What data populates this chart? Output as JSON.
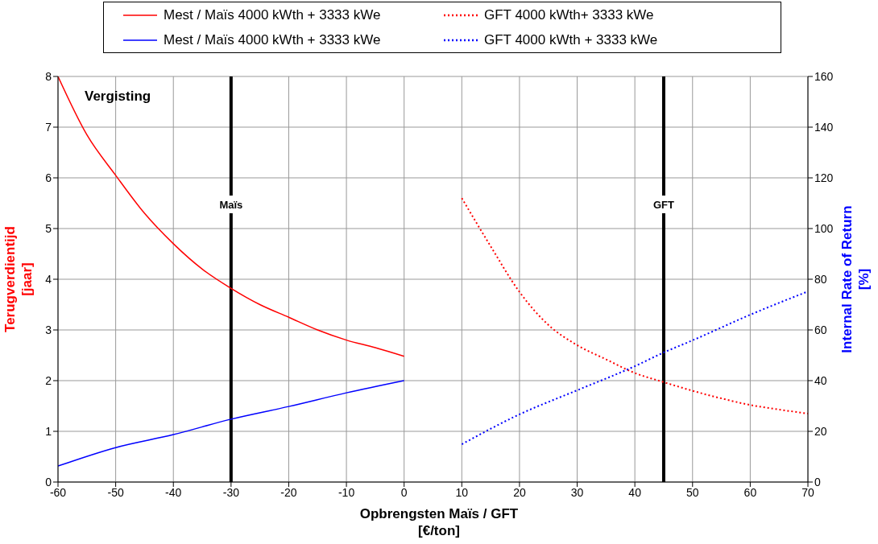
{
  "chart_data": {
    "type": "line",
    "title": "Vergisting",
    "xlabel": "Opbrengsten Maïs / GFT\n[€/ton]",
    "ylabel": "Terugverdientijd\n[jaar]",
    "y2label": "Internal Rate of Return\n[%]",
    "xlim": [
      -60,
      70
    ],
    "xticks": [
      -60,
      -50,
      -40,
      -30,
      -20,
      -10,
      0,
      10,
      20,
      30,
      40,
      50,
      60,
      70
    ],
    "ylim": [
      0,
      8
    ],
    "yticks": [
      0,
      1,
      2,
      3,
      4,
      5,
      6,
      7,
      8
    ],
    "y2lim": [
      0,
      160
    ],
    "y2ticks": [
      0,
      20,
      40,
      60,
      80,
      100,
      120,
      140,
      160
    ],
    "grid": true,
    "legend": "top",
    "marker": "none",
    "series": [
      {
        "name": "Mest / Maïs 4000 kWth + 3333 kWe",
        "color": "#ff0000",
        "line_style": "solid",
        "x": [
          -60,
          -55,
          -50,
          -45,
          -40,
          -35,
          -30,
          -25,
          -20,
          -15,
          -10,
          -5,
          0
        ],
        "values": [
          8.0,
          6.85,
          6.05,
          5.3,
          4.7,
          4.2,
          3.82,
          3.5,
          3.25,
          3.0,
          2.8,
          2.65,
          2.48
        ]
      },
      {
        "name": "Mest / Maïs 4000 kWth + 3333 kWe",
        "color": "#0000ff",
        "line_style": "solid",
        "axis": "y2",
        "x": [
          -60,
          -50,
          -40,
          -30,
          -20,
          -10,
          0
        ],
        "values": [
          6.3,
          13.6,
          18.7,
          24.8,
          29.8,
          35.2,
          40
        ]
      },
      {
        "name": "GFT 4000 kWth+ 3333 kWe",
        "color": "#ff0000",
        "line_style": "dotted",
        "x": [
          10,
          15,
          20,
          25,
          30,
          35,
          40,
          45,
          50,
          55,
          60,
          65,
          70
        ],
        "values": [
          5.6,
          4.65,
          3.75,
          3.1,
          2.7,
          2.42,
          2.15,
          1.97,
          1.8,
          1.65,
          1.52,
          1.43,
          1.35
        ]
      },
      {
        "name": "GFT 4000 kWth + 3333 kWe",
        "color": "#0000ff",
        "line_style": "dotted",
        "axis": "y2",
        "x": [
          10,
          20,
          30,
          40,
          45,
          50,
          60,
          70
        ],
        "values": [
          14.9,
          26.7,
          36.2,
          45.7,
          51.1,
          55.9,
          66,
          75.2
        ]
      }
    ],
    "ref_lines": [
      {
        "axis": "x",
        "value": -30,
        "label": "Maïs",
        "color": "#000000"
      },
      {
        "axis": "x",
        "value": 45,
        "label": "GFT",
        "color": "#000000"
      }
    ]
  }
}
